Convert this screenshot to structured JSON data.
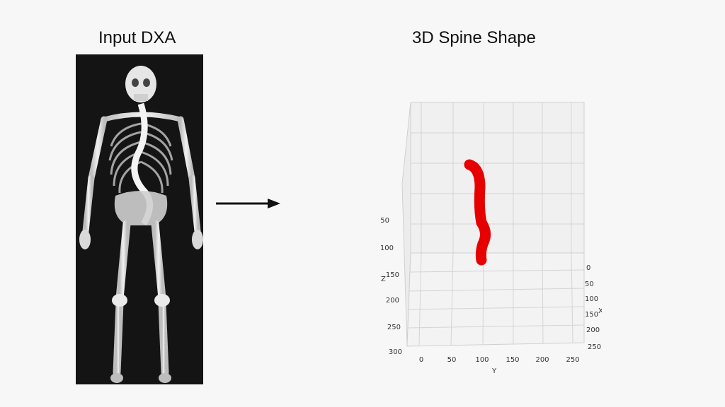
{
  "left_panel": {
    "title": "Input DXA"
  },
  "right_panel": {
    "title": "3D Spine Shape",
    "axes": {
      "z_label": "Z",
      "y_label": "Y",
      "x_label": "X",
      "z_ticks": [
        "50",
        "100",
        "150",
        "200",
        "250",
        "300"
      ],
      "y_ticks": [
        "0",
        "50",
        "100",
        "150",
        "200",
        "250"
      ],
      "x_ticks": [
        "0",
        "50",
        "100",
        "150",
        "200",
        "250"
      ]
    },
    "spine_color": "#e60000"
  },
  "arrow": {
    "direction": "right"
  }
}
